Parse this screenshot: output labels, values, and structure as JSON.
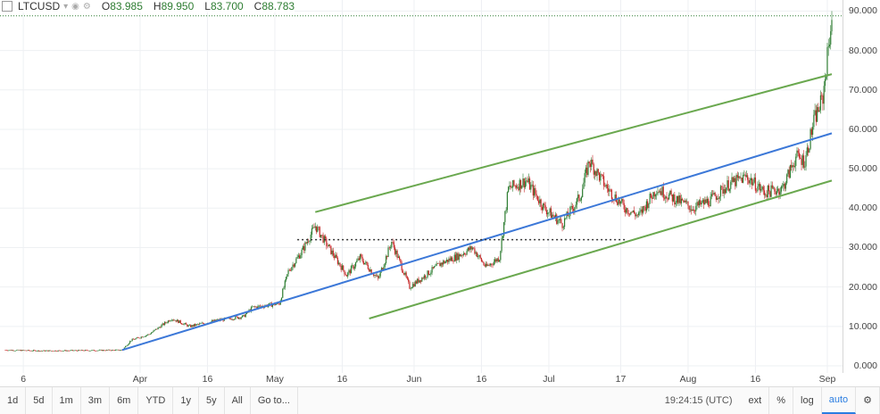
{
  "symbol": "LTCUSD",
  "ohlc": {
    "o_label": "O",
    "o": "83.985",
    "h_label": "H",
    "h": "89.950",
    "l_label": "L",
    "l": "83.700",
    "c_label": "C",
    "c": "88.783"
  },
  "colors": {
    "up": "#2e7d32",
    "down": "#c62828",
    "channel": "#6aa84f",
    "trend": "#3c78d8",
    "level": "#333333"
  },
  "chart_data": {
    "type": "candlestick",
    "ylim": [
      0,
      91
    ],
    "y_ticks": [
      "0.000",
      "10.000",
      "20.000",
      "30.000",
      "40.000",
      "50.000",
      "60.000",
      "70.000",
      "80.000",
      "90.000"
    ],
    "x_ticks": [
      "6",
      "Apr",
      "16",
      "May",
      "16",
      "Jun",
      "16",
      "Jul",
      "17",
      "Aug",
      "16",
      "Sep"
    ],
    "x_range": [
      "2017-03-02",
      "2017-09-02"
    ],
    "close_path": [
      [
        "2017-03-02",
        4.0
      ],
      [
        "2017-03-10",
        3.8
      ],
      [
        "2017-03-20",
        3.9
      ],
      [
        "2017-03-28",
        4.0
      ],
      [
        "2017-03-30",
        6.5
      ],
      [
        "2017-04-03",
        8.0
      ],
      [
        "2017-04-08",
        12.0
      ],
      [
        "2017-04-12",
        10.0
      ],
      [
        "2017-04-18",
        11.5
      ],
      [
        "2017-04-24",
        12.5
      ],
      [
        "2017-04-26",
        14.8
      ],
      [
        "2017-05-02",
        15.8
      ],
      [
        "2017-05-04",
        24.0
      ],
      [
        "2017-05-07",
        29.0
      ],
      [
        "2017-05-10",
        35.5
      ],
      [
        "2017-05-13",
        30.0
      ],
      [
        "2017-05-17",
        23.0
      ],
      [
        "2017-05-20",
        27.5
      ],
      [
        "2017-05-24",
        22.0
      ],
      [
        "2017-05-27",
        31.5
      ],
      [
        "2017-05-31",
        20.0
      ],
      [
        "2017-06-03",
        22.5
      ],
      [
        "2017-06-07",
        26.0
      ],
      [
        "2017-06-11",
        28.0
      ],
      [
        "2017-06-14",
        30.0
      ],
      [
        "2017-06-17",
        25.0
      ],
      [
        "2017-06-20",
        27.5
      ],
      [
        "2017-06-22",
        45.0
      ],
      [
        "2017-06-26",
        47.0
      ],
      [
        "2017-06-30",
        40.0
      ],
      [
        "2017-07-04",
        36.0
      ],
      [
        "2017-07-08",
        43.0
      ],
      [
        "2017-07-10",
        52.0
      ],
      [
        "2017-07-14",
        45.0
      ],
      [
        "2017-07-18",
        40.0
      ],
      [
        "2017-07-21",
        38.0
      ],
      [
        "2017-07-25",
        45.0
      ],
      [
        "2017-07-28",
        43.0
      ],
      [
        "2017-08-02",
        40.0
      ],
      [
        "2017-08-06",
        42.0
      ],
      [
        "2017-08-10",
        46.0
      ],
      [
        "2017-08-14",
        48.0
      ],
      [
        "2017-08-18",
        44.0
      ],
      [
        "2017-08-22",
        45.0
      ],
      [
        "2017-08-25",
        53.0
      ],
      [
        "2017-08-27",
        52.0
      ],
      [
        "2017-08-29",
        62.0
      ],
      [
        "2017-08-31",
        68.0
      ],
      [
        "2017-09-02",
        88.783
      ]
    ],
    "drawings": [
      {
        "kind": "channel-top",
        "from": [
          "2017-05-10",
          39.0
        ],
        "to": [
          "2017-09-02",
          74.0
        ]
      },
      {
        "kind": "channel-bottom",
        "from": [
          "2017-05-22",
          12.0
        ],
        "to": [
          "2017-09-02",
          47.0
        ]
      },
      {
        "kind": "trend",
        "from": [
          "2017-03-28",
          4.0
        ],
        "to": [
          "2017-09-02",
          59.0
        ]
      },
      {
        "kind": "level",
        "from": [
          "2017-05-06",
          32.0
        ],
        "to": [
          "2017-07-18",
          32.0
        ]
      }
    ]
  },
  "bottom": {
    "ranges": [
      "1d",
      "5d",
      "1m",
      "3m",
      "6m",
      "YTD",
      "1y",
      "5y",
      "All"
    ],
    "goto": "Go to...",
    "time": "19:24:15 (UTC)",
    "ext": "ext",
    "pct": "%",
    "log": "log",
    "auto": "auto"
  }
}
